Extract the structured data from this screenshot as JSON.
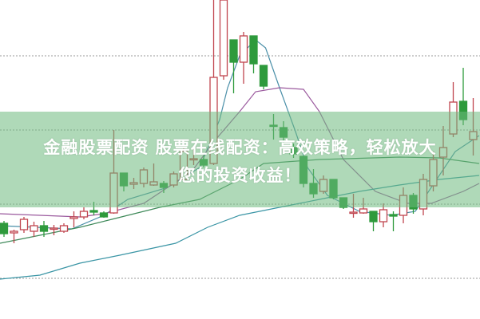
{
  "banner": {
    "line1": "金融股票配资 股票在线配资：高效策略，轻松放大",
    "line2": "您的投资收益！"
  },
  "chart_data": {
    "type": "candlestick",
    "title": "",
    "xlabel": "",
    "ylabel": "",
    "ylim": [
      0,
      400
    ],
    "grid": true,
    "grid_lines_y": [
      330,
      237,
      144,
      51
    ],
    "colors": {
      "up": "#c0454f",
      "down": "#2e9a3c",
      "ma_short": "#4a8fa8",
      "ma_mid": "#9b5a9e",
      "ma_long": "#3f8a5a",
      "ma_longest": "#3a95a5",
      "grid": "#999999",
      "banner": "#6eb97d"
    },
    "candles": [
      [
        120,
        123,
        103,
        107
      ],
      [
        108,
        112,
        95,
        110
      ],
      [
        112,
        128,
        108,
        125
      ],
      [
        110,
        122,
        103,
        117
      ],
      [
        117,
        123,
        103,
        110
      ],
      [
        113,
        118,
        105,
        114
      ],
      [
        110,
        120,
        108,
        117
      ],
      [
        126,
        135,
        115,
        128
      ],
      [
        128,
        140,
        125,
        135
      ],
      [
        136,
        147,
        130,
        134
      ],
      [
        133,
        135,
        127,
        128
      ],
      [
        133,
        237,
        132,
        183
      ],
      [
        183,
        183,
        160,
        167
      ],
      [
        169,
        177,
        163,
        171
      ],
      [
        170,
        190,
        165,
        187
      ],
      [
        168,
        195,
        167,
        172
      ],
      [
        170,
        173,
        158,
        165
      ],
      [
        168,
        185,
        165,
        182
      ],
      [
        175,
        215,
        172,
        210
      ],
      [
        200,
        215,
        193,
        201
      ],
      [
        200,
        205,
        190,
        193
      ],
      [
        195,
        400,
        193,
        303
      ],
      [
        305,
        400,
        300,
        400
      ],
      [
        350,
        350,
        283,
        322
      ],
      [
        322,
        360,
        295,
        355
      ],
      [
        355,
        355,
        308,
        320
      ],
      [
        318,
        318,
        288,
        292
      ],
      [
        243,
        257,
        225,
        242
      ],
      [
        240,
        248,
        220,
        228
      ],
      [
        215,
        220,
        202,
        207
      ],
      [
        204,
        204,
        165,
        170
      ],
      [
        170,
        188,
        152,
        157
      ],
      [
        160,
        180,
        157,
        175
      ],
      [
        175,
        175,
        150,
        152
      ],
      [
        152,
        152,
        138,
        140
      ],
      [
        133,
        157,
        127,
        134
      ],
      [
        133,
        152,
        132,
        138
      ],
      [
        135,
        135,
        110,
        122
      ],
      [
        122,
        145,
        115,
        137
      ],
      [
        131,
        135,
        110,
        129
      ],
      [
        130,
        165,
        120,
        155
      ],
      [
        155,
        158,
        132,
        138
      ],
      [
        138,
        182,
        130,
        175
      ],
      [
        167,
        210,
        160,
        200
      ],
      [
        203,
        242,
        180,
        215
      ],
      [
        232,
        297,
        228,
        272
      ],
      [
        273,
        315,
        243,
        250
      ],
      [
        225,
        277,
        205,
        235
      ]
    ],
    "moving_averages": [
      {
        "key": "ma_short",
        "points": [
          [
            -0.4,
            117
          ],
          [
            6.8,
            113
          ],
          [
            10,
            130
          ],
          [
            12.4,
            150
          ],
          [
            16.4,
            165
          ],
          [
            19.6,
            190
          ],
          [
            21.6,
            250
          ],
          [
            22.4,
            290
          ],
          [
            23.6,
            330
          ],
          [
            25.2,
            350
          ],
          [
            26.2,
            340
          ],
          [
            27.6,
            290
          ],
          [
            29.2,
            235
          ],
          [
            30.4,
            190
          ],
          [
            32.4,
            155
          ],
          [
            35.6,
            135
          ],
          [
            38.8,
            130
          ],
          [
            41.2,
            135
          ],
          [
            42.8,
            165
          ],
          [
            45.2,
            210
          ],
          [
            47.6,
            230
          ]
        ]
      },
      {
        "key": "ma_mid",
        "points": [
          [
            -0.4,
            132
          ],
          [
            3.6,
            130
          ],
          [
            7.6,
            128
          ],
          [
            10,
            132
          ],
          [
            14,
            145
          ],
          [
            18.8,
            185
          ],
          [
            21.2,
            225
          ],
          [
            23.6,
            260
          ],
          [
            25.2,
            285
          ],
          [
            27.6,
            290
          ],
          [
            30,
            288
          ],
          [
            31.6,
            260
          ],
          [
            34,
            200
          ],
          [
            37.2,
            160
          ],
          [
            40.4,
            145
          ],
          [
            42.8,
            145
          ],
          [
            46,
            160
          ],
          [
            47.6,
            170
          ]
        ]
      },
      {
        "key": "ma_long",
        "points": [
          [
            -0.4,
            95
          ],
          [
            3.6,
            105
          ],
          [
            7.6,
            115
          ],
          [
            10.8,
            125
          ],
          [
            15.6,
            140
          ],
          [
            19.6,
            150
          ],
          [
            23.6,
            175
          ],
          [
            26,
            195
          ],
          [
            31.6,
            200
          ],
          [
            39.6,
            203
          ],
          [
            43.6,
            202
          ],
          [
            47.6,
            195
          ]
        ]
      },
      {
        "key": "ma_longest",
        "points": [
          [
            -0.4,
            50
          ],
          [
            3.6,
            55
          ],
          [
            7.6,
            70
          ],
          [
            11.6,
            80
          ],
          [
            17.2,
            95
          ],
          [
            20.4,
            115
          ],
          [
            23.6,
            130
          ],
          [
            27.6,
            140
          ],
          [
            31.6,
            150
          ],
          [
            35.6,
            160
          ],
          [
            39.6,
            168
          ],
          [
            43.6,
            175
          ],
          [
            47.6,
            180
          ]
        ]
      }
    ]
  }
}
